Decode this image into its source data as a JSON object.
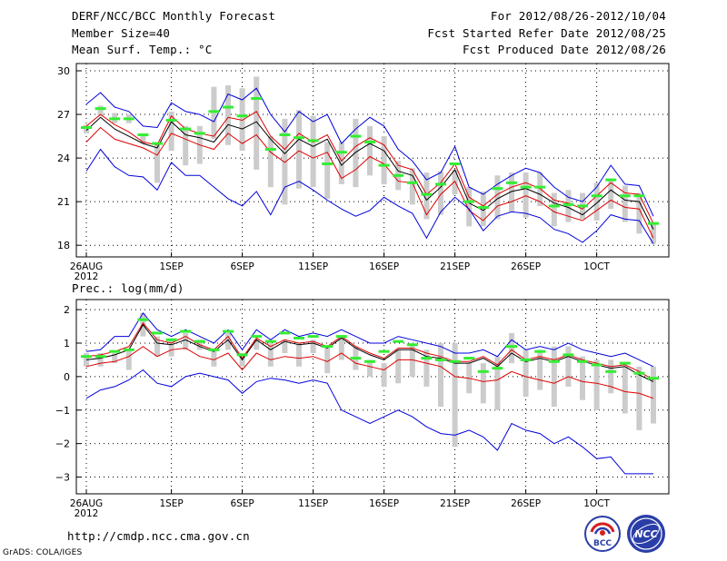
{
  "header": {
    "title": "DERF/NCC/BCC Monthly Forecast",
    "member_size": "Member Size=40",
    "period": "For 2012/08/26-2012/10/04",
    "started": "Fcst Started Refer Date 2012/08/25",
    "produced": "Fcst Produced Date 2012/08/26"
  },
  "footer": {
    "url": "http://cmdp.ncc.cma.gov.cn",
    "grads": "GrADS: COLA/IGES",
    "logo_left": "BCC",
    "logo_right": "NCC"
  },
  "colors": {
    "envelope": "#0000dd",
    "spread": "#dd0000",
    "mean": "#000000",
    "box": "#cccccc",
    "marker": "#33ee33"
  },
  "chart_data": [
    {
      "type": "line",
      "name": "temperature",
      "title": "Mean Surf. Temp.: °C",
      "ylim": [
        17.2,
        30.5
      ],
      "yticks": [
        18,
        21,
        24,
        27,
        30
      ],
      "ytick_labels": [
        "18",
        "21",
        "24",
        "27",
        "30"
      ],
      "xlabels": [
        {
          "day": 0,
          "label": "26AUG"
        },
        {
          "day": 6,
          "label": "1SEP"
        },
        {
          "day": 11,
          "label": "6SEP"
        },
        {
          "day": 16,
          "label": "11SEP"
        },
        {
          "day": 21,
          "label": "16SEP"
        },
        {
          "day": 26,
          "label": "21SEP"
        },
        {
          "day": 31,
          "label": "26SEP"
        },
        {
          "day": 36,
          "label": "1OCT"
        }
      ],
      "year_label": "2012",
      "series": [
        {
          "name": "max",
          "color": "#0000dd",
          "values": [
            27.7,
            28.5,
            27.5,
            27.2,
            26.2,
            26.1,
            27.8,
            27.2,
            27.0,
            26.5,
            28.4,
            28.0,
            28.8,
            27.0,
            25.8,
            27.2,
            26.5,
            27.0,
            25.0,
            26.0,
            26.8,
            26.2,
            24.6,
            23.8,
            22.5,
            23.0,
            24.8,
            22.0,
            21.5,
            22.2,
            22.8,
            23.3,
            23.0,
            22.0,
            21.3,
            21.0,
            22.0,
            23.5,
            22.2,
            22.1,
            20.0
          ]
        },
        {
          "name": "upper",
          "color": "#dd0000",
          "values": [
            26.2,
            27.0,
            26.3,
            25.8,
            25.1,
            24.9,
            26.9,
            26.0,
            25.7,
            25.5,
            26.8,
            26.6,
            27.2,
            25.5,
            24.6,
            25.7,
            25.1,
            25.6,
            23.8,
            24.8,
            25.4,
            24.9,
            23.5,
            23.2,
            21.5,
            22.3,
            23.6,
            21.3,
            20.7,
            21.5,
            22.0,
            22.3,
            21.9,
            21.1,
            20.9,
            20.5,
            21.4,
            22.3,
            21.6,
            21.5,
            19.5
          ]
        },
        {
          "name": "mean",
          "color": "#000000",
          "values": [
            25.9,
            26.8,
            26.0,
            25.5,
            25.0,
            24.7,
            26.5,
            25.6,
            25.4,
            25.1,
            26.3,
            26.0,
            26.5,
            25.3,
            24.3,
            25.3,
            24.8,
            25.3,
            23.5,
            24.4,
            25.0,
            24.5,
            23.1,
            22.8,
            21.1,
            22.0,
            23.2,
            20.9,
            20.4,
            21.2,
            21.7,
            21.9,
            21.5,
            20.9,
            20.6,
            20.1,
            20.9,
            21.8,
            21.1,
            21.0,
            19.1
          ]
        },
        {
          "name": "lower",
          "color": "#dd0000",
          "values": [
            25.1,
            26.1,
            25.3,
            25.0,
            24.7,
            24.2,
            25.7,
            25.3,
            24.9,
            24.6,
            25.7,
            25.0,
            25.6,
            24.4,
            23.7,
            24.5,
            24.0,
            24.4,
            22.6,
            23.2,
            24.1,
            23.6,
            22.4,
            22.3,
            20.1,
            21.5,
            22.4,
            20.4,
            19.7,
            20.7,
            21.0,
            21.4,
            21.0,
            20.3,
            20.0,
            19.7,
            20.4,
            21.1,
            20.6,
            20.5,
            18.5
          ]
        },
        {
          "name": "min",
          "color": "#0000dd",
          "values": [
            23.1,
            24.6,
            23.4,
            22.8,
            22.7,
            21.8,
            23.7,
            22.8,
            22.8,
            22.0,
            21.2,
            20.7,
            21.7,
            20.1,
            22.0,
            22.4,
            21.8,
            21.1,
            20.5,
            20.0,
            20.4,
            21.3,
            20.7,
            20.2,
            18.5,
            20.3,
            21.3,
            20.5,
            19.0,
            20.0,
            20.3,
            20.2,
            19.9,
            19.1,
            18.8,
            18.2,
            19.0,
            20.1,
            19.8,
            19.7,
            18.1
          ]
        }
      ],
      "boxes": [
        [
          25.7,
          26.3
        ],
        [
          26.9,
          27.6
        ],
        [
          26.4,
          27.1
        ],
        [
          26.4,
          27.0
        ],
        [
          25.0,
          25.6
        ],
        [
          22.3,
          24.9
        ],
        [
          24.5,
          27.2
        ],
        [
          23.5,
          26.2
        ],
        [
          23.6,
          26.2
        ],
        [
          25.3,
          28.9
        ],
        [
          24.9,
          29.0
        ],
        [
          24.5,
          28.8
        ],
        [
          23.2,
          29.6
        ],
        [
          22.0,
          25.5
        ],
        [
          20.8,
          26.7
        ],
        [
          21.9,
          27.3
        ],
        [
          22.0,
          26.9
        ],
        [
          21.2,
          25.1
        ],
        [
          22.2,
          25.1
        ],
        [
          22.0,
          26.7
        ],
        [
          22.8,
          26.2
        ],
        [
          22.2,
          25.5
        ],
        [
          21.8,
          23.8
        ],
        [
          20.8,
          23.3
        ],
        [
          19.8,
          23.0
        ],
        [
          20.1,
          23.1
        ],
        [
          21.5,
          23.2
        ],
        [
          19.3,
          22.0
        ],
        [
          19.3,
          21.7
        ],
        [
          19.8,
          22.8
        ],
        [
          20.3,
          23.0
        ],
        [
          19.9,
          23.0
        ],
        [
          20.7,
          23.0
        ],
        [
          19.3,
          21.6
        ],
        [
          19.6,
          21.8
        ],
        [
          19.8,
          21.6
        ],
        [
          19.7,
          22.3
        ],
        [
          20.5,
          22.6
        ],
        [
          19.6,
          22.1
        ],
        [
          18.8,
          21.6
        ],
        [
          18.1,
          19.6
        ]
      ],
      "markers": [
        26.1,
        27.4,
        26.7,
        26.7,
        25.6,
        25.0,
        26.6,
        26.0,
        25.7,
        27.2,
        27.5,
        26.9,
        28.1,
        24.6,
        25.6,
        25.4,
        25.2,
        23.6,
        24.4,
        25.5,
        25.1,
        23.5,
        22.8,
        22.3,
        21.5,
        22.2,
        23.6,
        21.0,
        20.6,
        21.9,
        22.3,
        22.0,
        22.0,
        20.7,
        20.8,
        20.7,
        21.4,
        22.5,
        21.4,
        21.4,
        19.5
      ]
    },
    {
      "type": "line",
      "name": "precipitation",
      "title": "Prec.: log(mm/d)",
      "ylim": [
        -3.5,
        2.3
      ],
      "yticks": [
        -3,
        -2,
        -1,
        0,
        1,
        2
      ],
      "ytick_labels": [
        "−3",
        "−2",
        "−1",
        "0",
        "1",
        "2"
      ],
      "xlabels": [
        {
          "day": 0,
          "label": "26AUG"
        },
        {
          "day": 6,
          "label": "1SEP"
        },
        {
          "day": 11,
          "label": "6SEP"
        },
        {
          "day": 16,
          "label": "11SEP"
        },
        {
          "day": 21,
          "label": "16SEP"
        },
        {
          "day": 26,
          "label": "21SEP"
        },
        {
          "day": 31,
          "label": "26SEP"
        },
        {
          "day": 36,
          "label": "1OCT"
        }
      ],
      "year_label": "2012",
      "series": [
        {
          "name": "max",
          "color": "#0000dd",
          "values": [
            0.75,
            0.8,
            1.2,
            1.2,
            1.9,
            1.4,
            1.2,
            1.4,
            1.2,
            1.0,
            1.4,
            0.8,
            1.4,
            1.1,
            1.4,
            1.2,
            1.3,
            1.2,
            1.4,
            1.2,
            1.0,
            1.0,
            1.2,
            1.1,
            1.0,
            0.9,
            0.7,
            0.7,
            0.8,
            0.6,
            1.1,
            0.8,
            0.9,
            0.8,
            1.0,
            0.8,
            0.7,
            0.6,
            0.7,
            0.5,
            0.3
          ]
        },
        {
          "name": "upper",
          "color": "#dd0000",
          "values": [
            0.6,
            0.65,
            0.75,
            0.9,
            1.6,
            1.1,
            1.0,
            1.2,
            0.95,
            0.8,
            1.2,
            0.55,
            1.15,
            0.9,
            1.1,
            1.0,
            1.05,
            0.9,
            1.2,
            0.9,
            0.7,
            0.55,
            0.85,
            0.85,
            0.7,
            0.6,
            0.45,
            0.45,
            0.6,
            0.35,
            0.8,
            0.5,
            0.6,
            0.5,
            0.65,
            0.5,
            0.4,
            0.3,
            0.35,
            0.15,
            -0.1
          ]
        },
        {
          "name": "mean",
          "color": "#000000",
          "values": [
            0.5,
            0.55,
            0.65,
            0.8,
            1.55,
            1.0,
            0.95,
            1.1,
            0.9,
            0.75,
            1.1,
            0.5,
            1.1,
            0.8,
            1.05,
            0.95,
            1.0,
            0.85,
            1.15,
            0.85,
            0.65,
            0.5,
            0.8,
            0.8,
            0.6,
            0.55,
            0.4,
            0.4,
            0.55,
            0.3,
            0.7,
            0.45,
            0.55,
            0.45,
            0.6,
            0.45,
            0.35,
            0.25,
            0.3,
            0.05,
            -0.15
          ]
        },
        {
          "name": "lower",
          "color": "#dd0000",
          "values": [
            0.3,
            0.4,
            0.45,
            0.6,
            0.9,
            0.6,
            0.8,
            0.85,
            0.6,
            0.5,
            0.7,
            0.2,
            0.7,
            0.5,
            0.6,
            0.55,
            0.6,
            0.45,
            0.7,
            0.4,
            0.3,
            0.2,
            0.5,
            0.5,
            0.4,
            0.3,
            0.0,
            -0.05,
            -0.15,
            -0.1,
            0.15,
            0.0,
            -0.1,
            -0.2,
            0.0,
            -0.15,
            -0.2,
            -0.3,
            -0.45,
            -0.5,
            -0.65
          ]
        },
        {
          "name": "min",
          "color": "#0000dd",
          "values": [
            -0.65,
            -0.4,
            -0.3,
            -0.1,
            0.2,
            -0.2,
            -0.3,
            0.0,
            0.1,
            0.0,
            -0.1,
            -0.5,
            -0.15,
            -0.05,
            -0.1,
            -0.2,
            -0.1,
            -0.2,
            -1.0,
            -1.2,
            -1.4,
            -1.2,
            -1.0,
            -1.2,
            -1.5,
            -1.7,
            -1.75,
            -1.6,
            -1.8,
            -2.2,
            -1.4,
            -1.6,
            -1.7,
            -2.0,
            -1.8,
            -2.1,
            -2.45,
            -2.4,
            -2.9,
            -2.9,
            -2.9
          ]
        }
      ],
      "boxes": [
        [
          0.3,
          0.7
        ],
        [
          0.3,
          0.7
        ],
        [
          0.4,
          0.7
        ],
        [
          0.2,
          0.8
        ],
        [
          1.2,
          1.9
        ],
        [
          0.6,
          1.2
        ],
        [
          0.6,
          1.1
        ],
        [
          0.8,
          1.3
        ],
        [
          0.8,
          1.1
        ],
        [
          0.3,
          0.8
        ],
        [
          0.8,
          1.3
        ],
        [
          0.3,
          0.7
        ],
        [
          0.8,
          1.1
        ],
        [
          0.3,
          1.0
        ],
        [
          0.7,
          1.1
        ],
        [
          0.3,
          1.0
        ],
        [
          0.7,
          1.1
        ],
        [
          0.1,
          0.9
        ],
        [
          0.5,
          1.2
        ],
        [
          0.2,
          0.9
        ],
        [
          0.0,
          0.5
        ],
        [
          -0.3,
          0.4
        ],
        [
          -0.2,
          0.8
        ],
        [
          0.0,
          1.0
        ],
        [
          -0.3,
          0.8
        ],
        [
          -0.9,
          1.0
        ],
        [
          -2.1,
          1.0
        ],
        [
          -0.5,
          0.4
        ],
        [
          -0.8,
          0.4
        ],
        [
          -1.0,
          0.6
        ],
        [
          0.4,
          1.3
        ],
        [
          -0.6,
          0.8
        ],
        [
          -0.4,
          0.8
        ],
        [
          -0.9,
          0.9
        ],
        [
          -0.3,
          0.9
        ],
        [
          -0.7,
          0.6
        ],
        [
          -1.0,
          0.5
        ],
        [
          -0.5,
          0.5
        ],
        [
          -1.1,
          0.3
        ],
        [
          -1.6,
          0.3
        ],
        [
          -1.4,
          0.3
        ]
      ],
      "markers": [
        0.6,
        0.6,
        0.75,
        0.8,
        1.7,
        1.3,
        1.1,
        1.35,
        1.05,
        0.8,
        1.35,
        0.65,
        1.2,
        1.05,
        1.3,
        1.15,
        1.2,
        0.9,
        1.2,
        0.55,
        0.45,
        0.75,
        1.05,
        0.95,
        0.55,
        0.5,
        0.45,
        0.55,
        0.15,
        0.25,
        0.9,
        0.5,
        0.75,
        0.45,
        0.65,
        0.45,
        0.35,
        0.15,
        0.4,
        0.1,
        -0.05
      ]
    }
  ]
}
